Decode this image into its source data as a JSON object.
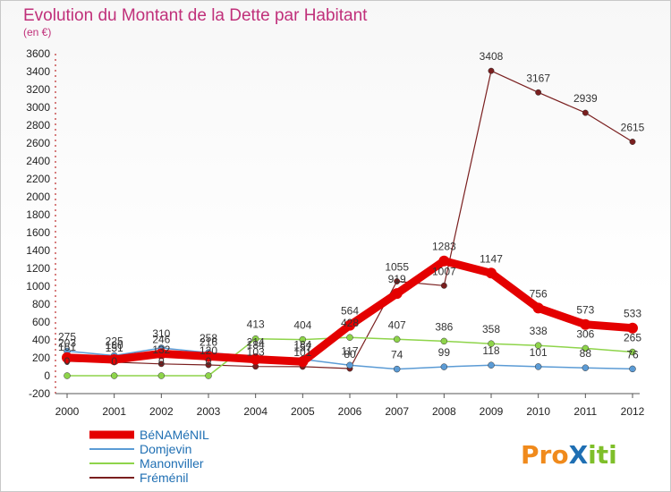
{
  "chart_data": {
    "type": "line",
    "title": "Evolution du Montant de la Dette par Habitant",
    "subtitle": "(en €)",
    "x": [
      2000,
      2001,
      2002,
      2003,
      2004,
      2005,
      2006,
      2007,
      2008,
      2009,
      2010,
      2011,
      2012
    ],
    "ylim": [
      -200,
      3600
    ],
    "y_ticks": [
      -200,
      0,
      200,
      400,
      600,
      800,
      1000,
      1200,
      1400,
      1600,
      1800,
      2000,
      2200,
      2400,
      2600,
      2800,
      3000,
      3200,
      3400,
      3600
    ],
    "grid": false,
    "legend_position": "bottom-left",
    "series": [
      {
        "name": "BéNAMéNIL",
        "color": "#e40000",
        "values": [
          203,
          180,
          246,
          216,
          184,
          157,
          564,
          919,
          1283,
          1147,
          756,
          573,
          533
        ]
      },
      {
        "name": "Domjevin",
        "color": "#5b9bd5",
        "values": [
          275,
          225,
          310,
          258,
          214,
          184,
          117,
          74,
          99,
          118,
          101,
          88,
          76
        ]
      },
      {
        "name": "Manonviller",
        "color": "#8ed44a",
        "values": [
          0,
          0,
          0,
          0,
          413,
          404,
          428,
          407,
          386,
          358,
          338,
          306,
          265
        ]
      },
      {
        "name": "Fréménil",
        "color": "#7a1f1f",
        "values": [
          161,
          151,
          132,
          120,
          103,
          101,
          80,
          1055,
          1007,
          3408,
          3167,
          2939,
          2615
        ]
      }
    ]
  },
  "logo": {
    "text": "ProXiti"
  }
}
